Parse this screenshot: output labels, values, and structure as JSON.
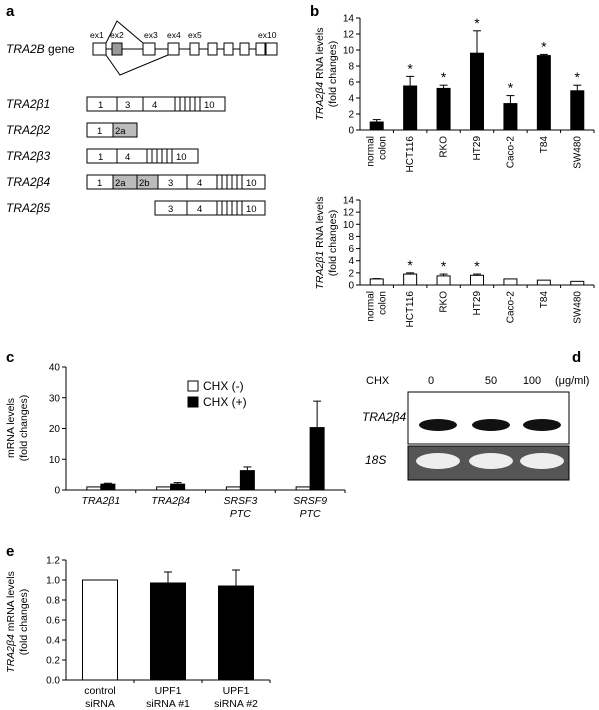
{
  "panel_labels": {
    "a": "a",
    "b": "b",
    "c": "c",
    "d": "d",
    "e": "e"
  },
  "panel_a": {
    "gene_label": "TRA2B",
    "gene_suffix": " gene",
    "exon_labels": [
      "ex1",
      "ex2",
      "ex3",
      "ex4",
      "ex5",
      "ex10"
    ],
    "isoforms": [
      {
        "name": "TRA2β1",
        "segments": [
          "1",
          "3",
          "4",
          "10"
        ]
      },
      {
        "name": "TRA2β2",
        "segments": [
          "1",
          "2a"
        ]
      },
      {
        "name": "TRA2β3",
        "segments": [
          "1",
          "4",
          "10"
        ]
      },
      {
        "name": "TRA2β4",
        "segments": [
          "1",
          "2a",
          "2b",
          "3",
          "4",
          "10"
        ]
      },
      {
        "name": "TRA2β5",
        "segments": [
          "3",
          "4",
          "10"
        ]
      }
    ]
  },
  "panel_d": {
    "cond_label": "CHX",
    "doses": [
      "0",
      "50",
      "100"
    ],
    "unit": "(μg/ml)",
    "row1": "TRA2β4",
    "row2": "18S"
  },
  "colors": {
    "filled": "#000000",
    "open": "#ffffff",
    "exon_gray": "#999999",
    "gel": "#555555"
  },
  "chart_data": [
    {
      "type": "bar",
      "panel": "b-top",
      "ylabel_gene": "TRA2β4",
      "ylabel_rest": " RNA levels",
      "ylabel_line2": "(fold changes)",
      "ylim": [
        0,
        14
      ],
      "yticks": [
        "0",
        "2",
        "4",
        "6",
        "8",
        "10",
        "12",
        "14"
      ],
      "categories": [
        [
          "normal",
          "colon"
        ],
        [
          "HCT116"
        ],
        [
          "RKO"
        ],
        [
          "HT29"
        ],
        [
          "Caco-2"
        ],
        [
          "T84"
        ],
        [
          "SW480"
        ]
      ],
      "values": [
        1.0,
        5.5,
        5.2,
        9.6,
        3.3,
        9.3,
        4.9
      ],
      "errors": [
        0.3,
        1.2,
        0.4,
        2.8,
        1.0,
        0.15,
        0.7
      ],
      "significant": [
        false,
        true,
        true,
        true,
        true,
        true,
        true
      ],
      "star": "*"
    },
    {
      "type": "bar",
      "panel": "b-bottom",
      "ylabel_gene": "TRA2β1",
      "ylabel_rest": " RNA levels",
      "ylabel_line2": "(fold changes)",
      "ylim": [
        0,
        14
      ],
      "yticks": [
        "0",
        "2",
        "4",
        "6",
        "8",
        "10",
        "12",
        "14"
      ],
      "categories": [
        [
          "normal",
          "colon"
        ],
        [
          "HCT116"
        ],
        [
          "RKO"
        ],
        [
          "HT29"
        ],
        [
          "Caco-2"
        ],
        [
          "T84"
        ],
        [
          "SW480"
        ]
      ],
      "values": [
        1.0,
        1.8,
        1.5,
        1.6,
        1.0,
        0.8,
        0.6
      ],
      "errors": [
        0.05,
        0.2,
        0.3,
        0.2,
        0,
        0,
        0
      ],
      "significant": [
        false,
        true,
        true,
        true,
        false,
        false,
        false
      ],
      "star": "*"
    },
    {
      "type": "bar",
      "panel": "c",
      "ylabel_lines": [
        "mRNA levels",
        "(fold changes)"
      ],
      "ylim": [
        0,
        40
      ],
      "yticks": [
        "0",
        "10",
        "20",
        "30",
        "40"
      ],
      "categories": [
        [
          "TRA2β1"
        ],
        [
          "TRA2β4"
        ],
        [
          "SRSF3",
          "PTC"
        ],
        [
          "SRSF9",
          "PTC"
        ]
      ],
      "series": [
        {
          "name": "CHX (-)",
          "values": [
            1,
            1,
            1,
            1
          ],
          "errors": [
            0,
            0,
            0,
            0
          ]
        },
        {
          "name": "CHX (+)",
          "values": [
            1.9,
            1.9,
            6.3,
            20.3
          ],
          "errors": [
            0.3,
            0.5,
            1.2,
            8.6
          ]
        }
      ],
      "legend": "top-right"
    },
    {
      "type": "bar",
      "panel": "e",
      "ylabel_gene": "TRA2β4",
      "ylabel_rest": " mRNA levels",
      "ylabel_line2": "(fold changes)",
      "ylim": [
        0,
        1.2
      ],
      "yticks": [
        "0.0",
        "0.2",
        "0.4",
        "0.6",
        "0.8",
        "1.0",
        "1.2"
      ],
      "categories": [
        [
          "control",
          "siRNA"
        ],
        [
          "UPF1",
          "siRNA #1"
        ],
        [
          "UPF1",
          "siRNA #2"
        ]
      ],
      "values": [
        1.0,
        0.97,
        0.94
      ],
      "errors": [
        0,
        0.11,
        0.16
      ]
    }
  ]
}
